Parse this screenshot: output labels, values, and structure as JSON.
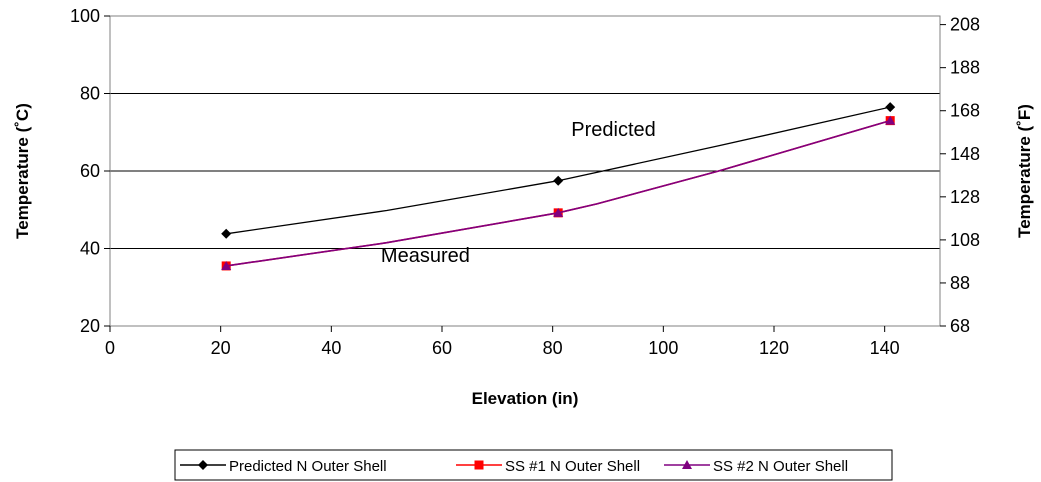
{
  "chart_data": {
    "type": "line",
    "title": "",
    "xlabel": "Elevation (in)",
    "ylabel": "Temperature (˚C)",
    "y2label": "Temperature (˚F)",
    "xlim": [
      0,
      150
    ],
    "ylim": [
      20,
      100
    ],
    "y2lim": [
      68,
      212
    ],
    "x_ticks": [
      0,
      20,
      40,
      60,
      80,
      100,
      120,
      140
    ],
    "y_ticks": [
      20,
      40,
      60,
      80,
      100
    ],
    "y2_ticks": [
      68,
      88,
      108,
      128,
      148,
      168,
      188,
      208
    ],
    "grid": "horizontal major",
    "legend_position": "bottom",
    "annotations": [
      {
        "text": "Predicted",
        "x": 91,
        "y": 69
      },
      {
        "text": "Measured",
        "x": 57,
        "y": 36.5
      }
    ],
    "series": [
      {
        "name": "Predicted N Outer Shell",
        "color": "#000000",
        "marker": "diamond",
        "points": [
          [
            21,
            43.8
          ],
          [
            81,
            57.5
          ],
          [
            141,
            76.5
          ]
        ],
        "curve": [
          [
            21,
            43.8
          ],
          [
            50,
            49.8
          ],
          [
            81,
            57.5
          ],
          [
            110,
            66.5
          ],
          [
            141,
            76.5
          ]
        ]
      },
      {
        "name": "SS #1 N Outer Shell",
        "color": "#ff0000",
        "marker": "square",
        "points": [
          [
            21,
            35.5
          ],
          [
            81,
            49.2
          ],
          [
            141,
            73.0
          ]
        ],
        "curve": [
          [
            21,
            35.5
          ],
          [
            50,
            41.5
          ],
          [
            81,
            49.2
          ],
          [
            88,
            51.5
          ],
          [
            110,
            60
          ],
          [
            141,
            73.0
          ]
        ]
      },
      {
        "name": "SS #2 N Outer Shell",
        "color": "#800080",
        "marker": "triangle",
        "points": [
          [
            21,
            35.5
          ],
          [
            81,
            49.2
          ],
          [
            141,
            73.0
          ]
        ],
        "curve": [
          [
            21,
            35.5
          ],
          [
            50,
            41.5
          ],
          [
            81,
            49.2
          ],
          [
            88,
            51.5
          ],
          [
            110,
            60
          ],
          [
            141,
            73.0
          ]
        ]
      }
    ]
  }
}
